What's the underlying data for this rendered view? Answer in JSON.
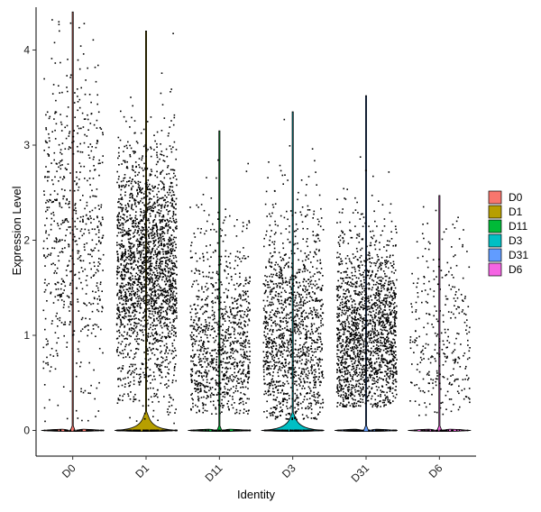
{
  "chart_data": {
    "type": "violin",
    "xlabel": "Identity",
    "ylabel": "Expression Level",
    "ylim": [
      -0.27,
      4.45
    ],
    "yticks": [
      0,
      1,
      2,
      3,
      4
    ],
    "categories": [
      "D0",
      "D1",
      "D11",
      "D3",
      "D31",
      "D6"
    ],
    "colors": [
      "#F8766D",
      "#B79F00",
      "#00BA38",
      "#00BFC4",
      "#619CFF",
      "#F564E3"
    ],
    "violin_max": [
      4.4,
      4.2,
      3.15,
      3.35,
      3.52,
      2.47
    ],
    "violin_bulge": [
      0.01,
      0.16,
      0.01,
      0.15,
      0.01,
      0.01
    ],
    "point_clouds": [
      {
        "n": 650,
        "center": 2.2,
        "spread": 0.95,
        "min": 0.1,
        "max": 4.4,
        "zeros": 60
      },
      {
        "n": 2200,
        "center": 1.7,
        "spread": 0.65,
        "min": 0.05,
        "max": 4.2,
        "zeros": 120
      },
      {
        "n": 1000,
        "center": 0.8,
        "spread": 0.65,
        "min": 0.18,
        "max": 3.15,
        "zeros": 80
      },
      {
        "n": 1300,
        "center": 0.9,
        "spread": 0.7,
        "min": 0.12,
        "max": 3.35,
        "zeros": 100
      },
      {
        "n": 1800,
        "center": 0.9,
        "spread": 0.6,
        "min": 0.25,
        "max": 3.52,
        "zeros": 80
      },
      {
        "n": 320,
        "center": 0.9,
        "spread": 0.7,
        "min": 0.15,
        "max": 2.47,
        "zeros": 40
      }
    ],
    "legend": [
      "D0",
      "D1",
      "D11",
      "D3",
      "D31",
      "D6"
    ],
    "legend_position": "right",
    "grid": false
  }
}
